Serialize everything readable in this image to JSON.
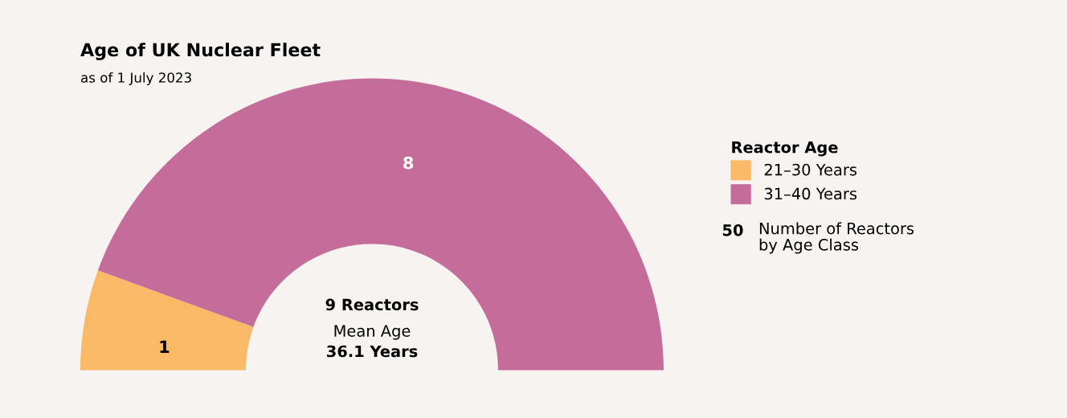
{
  "chart_data": {
    "type": "donut",
    "title": "Age of UK Nuclear Fleet",
    "subtitle": "as of 1 July 2023",
    "categories": [
      "21–30 Years",
      "31–40 Years"
    ],
    "values": [
      1,
      8
    ],
    "colors": [
      "#f9b966",
      "#c46c9a"
    ],
    "data_labels": true,
    "legend": "right",
    "legend_title": "Reactor Age",
    "annotations": [
      "9 Reactors",
      "Mean Age",
      "36.1 Years",
      "50",
      "Number of Reactors\nby Age Class"
    ]
  }
}
